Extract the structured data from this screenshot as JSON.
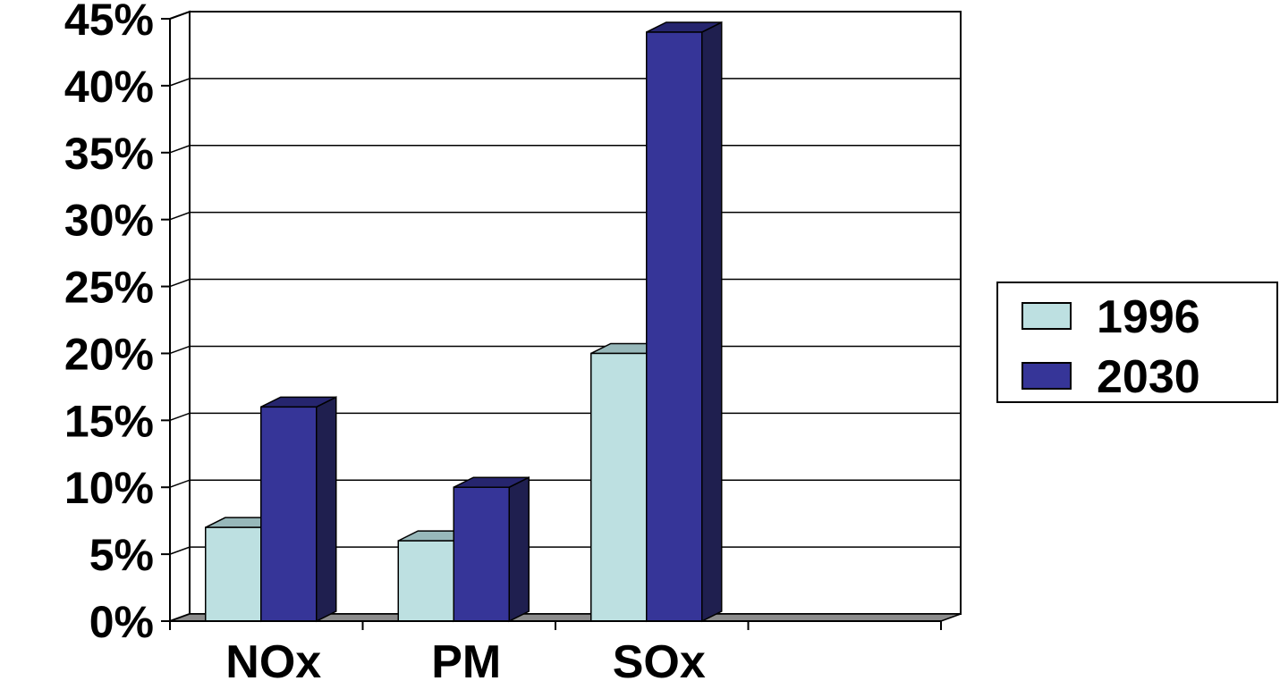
{
  "chart_data": {
    "type": "bar",
    "categories": [
      "NOx",
      "PM",
      "SOx",
      ""
    ],
    "series": [
      {
        "name": "1996",
        "values": [
          7,
          6,
          20,
          null
        ],
        "color": "#bde0e1",
        "top_color": "#97b8ba",
        "side_color": "#8fb1b3"
      },
      {
        "name": "2030",
        "values": [
          16,
          10,
          44,
          null
        ],
        "color": "#363598",
        "top_color": "#26256e",
        "side_color": "#1f1f4f"
      }
    ],
    "ylim": [
      0,
      45
    ],
    "yticks": [
      "0%",
      "5%",
      "10%",
      "15%",
      "20%",
      "25%",
      "30%",
      "35%",
      "40%",
      "45%"
    ],
    "grid": true,
    "legend": "right",
    "title": "",
    "xlabel": "",
    "ylabel": "",
    "floor_color": "#8c8c8c"
  }
}
